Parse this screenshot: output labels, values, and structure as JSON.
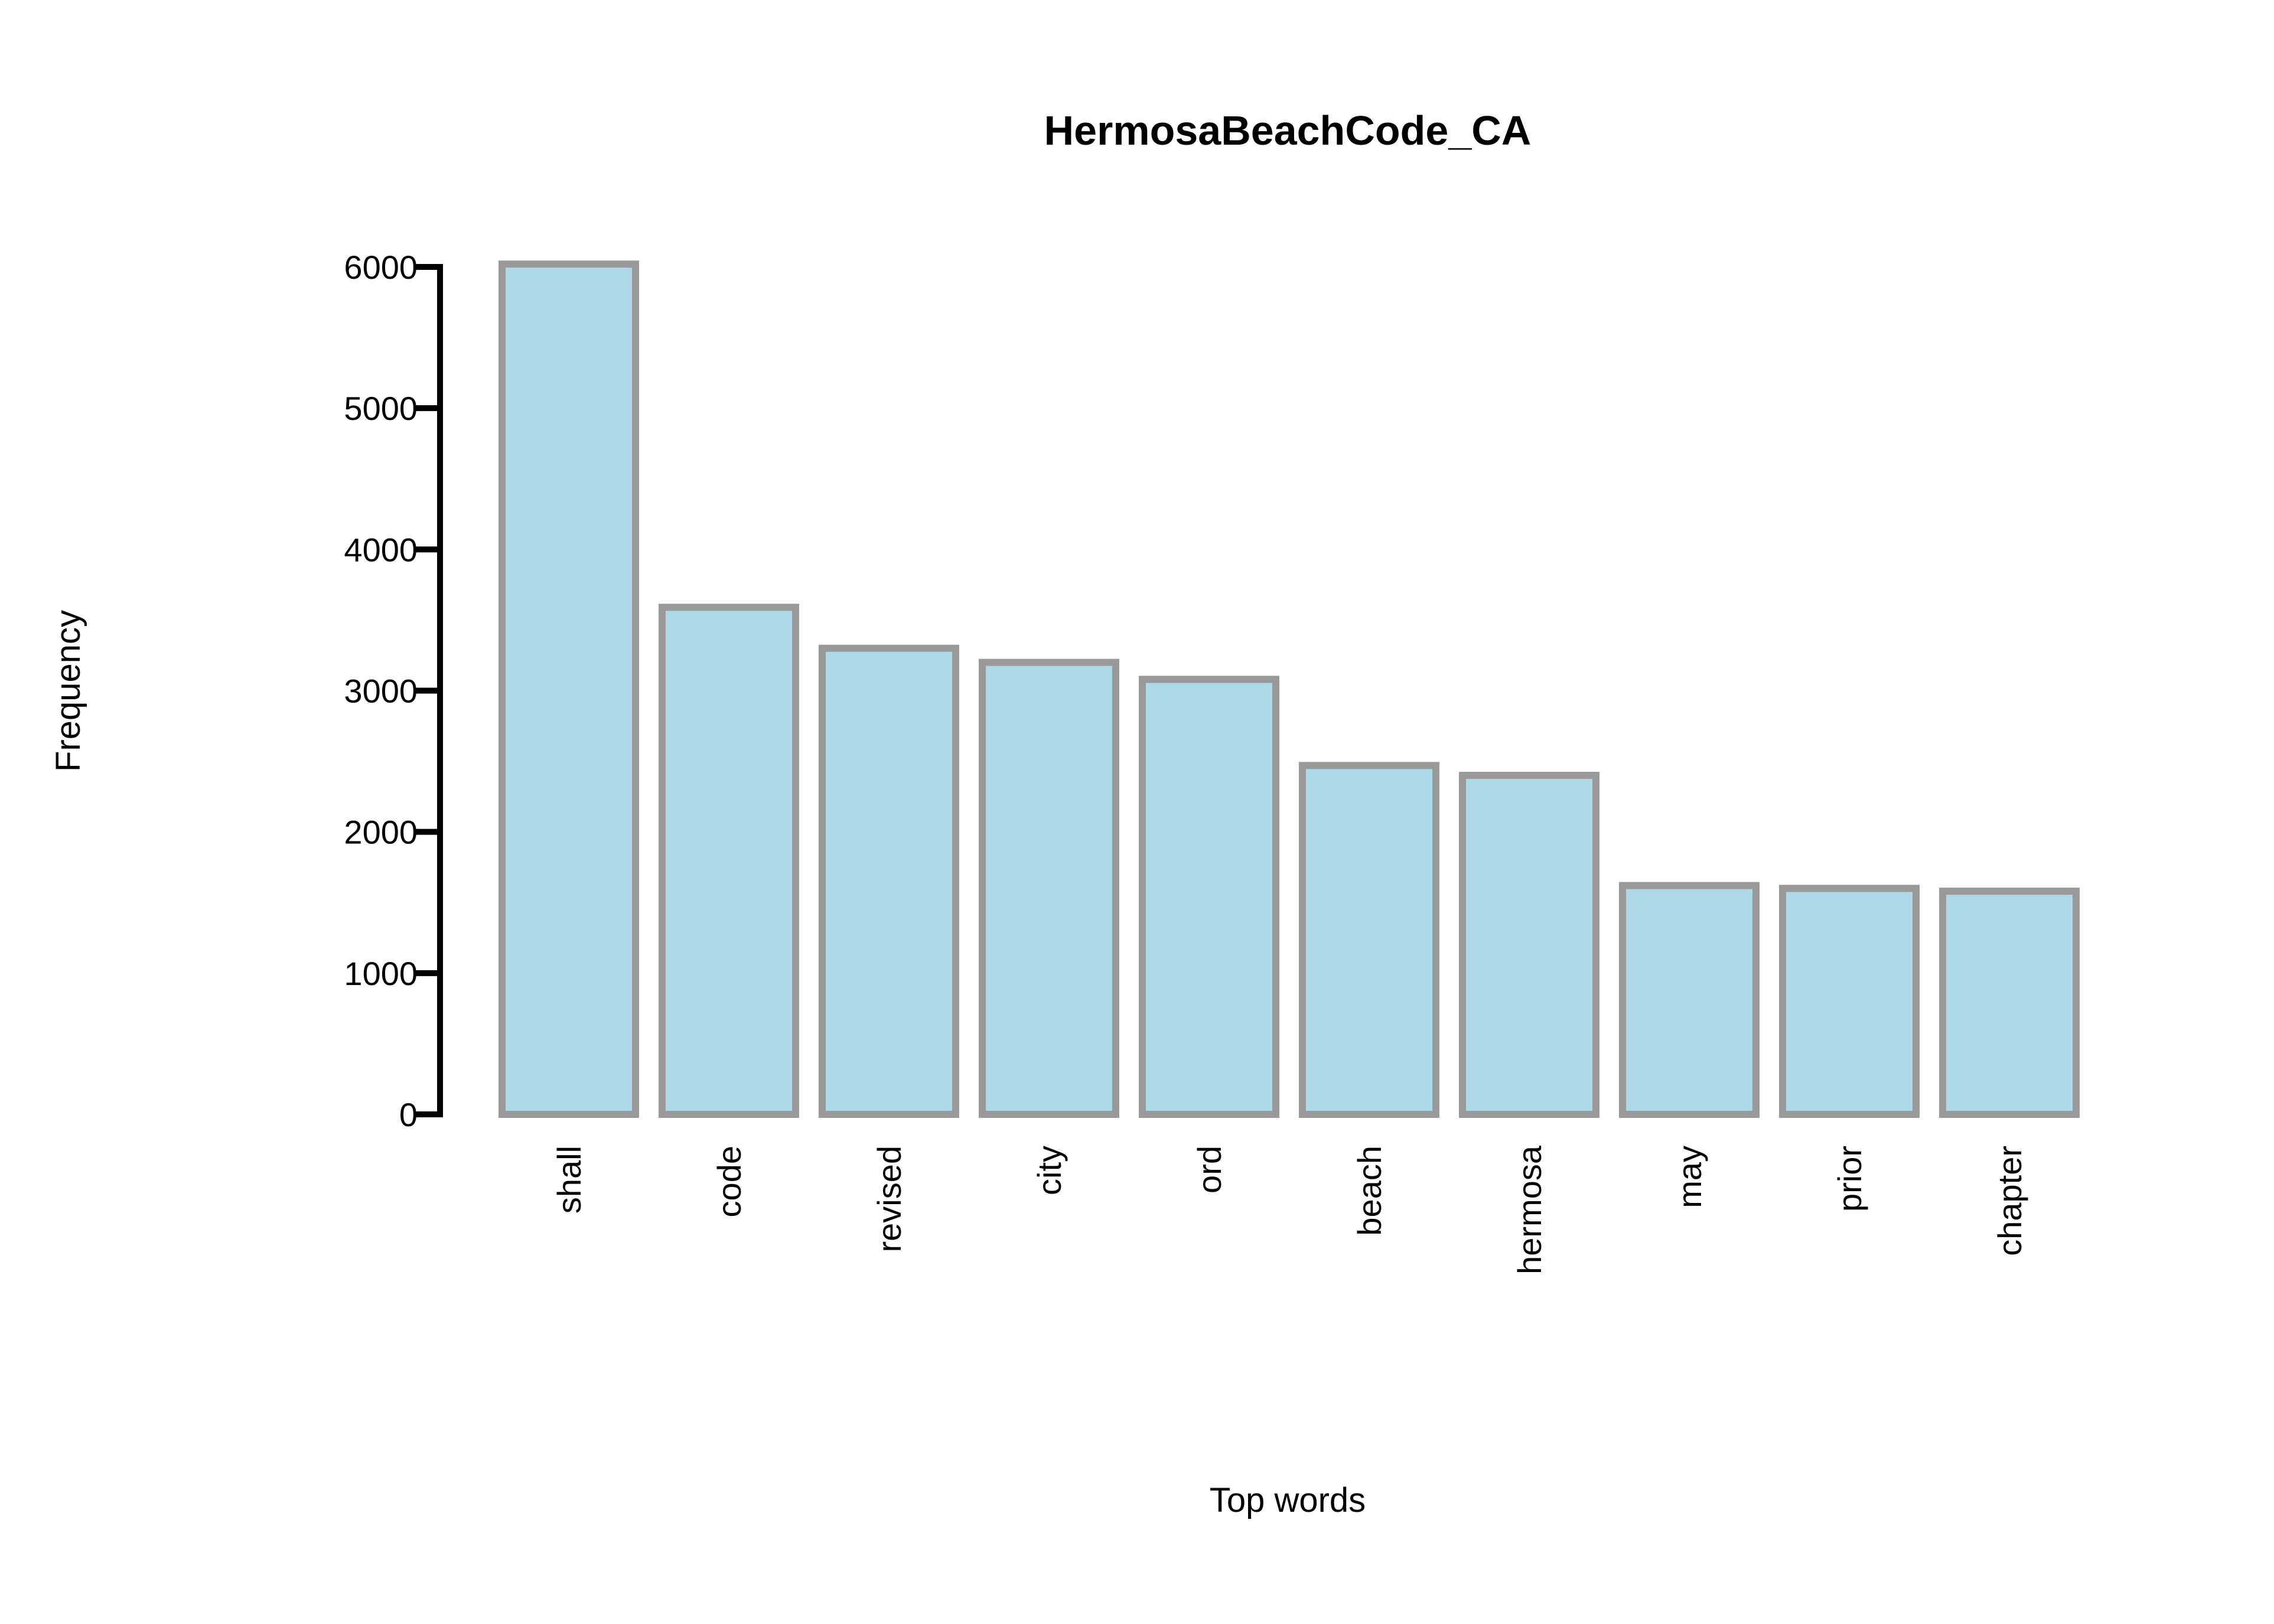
{
  "chart_data": {
    "type": "bar",
    "title": "HermosaBeachCode_CA",
    "xlabel": "Top words",
    "ylabel": "Frequency",
    "categories": [
      "shall",
      "code",
      "revised",
      "city",
      "ord",
      "beach",
      "hermosa",
      "may",
      "prior",
      "chapter"
    ],
    "values": [
      6020,
      3590,
      3300,
      3200,
      3080,
      2470,
      2400,
      1620,
      1600,
      1580
    ],
    "ylim": [
      0,
      6000
    ],
    "yticks": [
      0,
      1000,
      2000,
      3000,
      4000,
      5000,
      6000
    ],
    "grid": false,
    "legend": "none",
    "colors": {
      "bar_fill": "#add8e6",
      "bar_stroke": "#999999",
      "axis": "#000000"
    }
  }
}
